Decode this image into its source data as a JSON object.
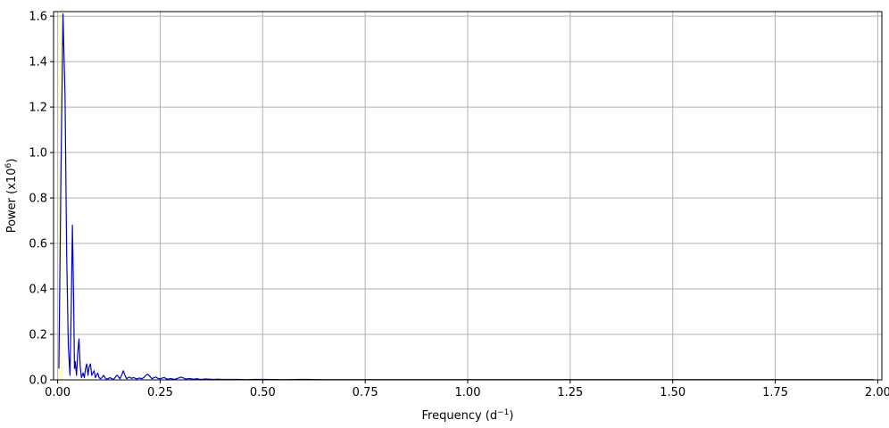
{
  "chart_data": {
    "type": "line",
    "xlabel": "Frequency (d",
    "xlabel_sup": "−1",
    "xlabel_suffix": ")",
    "ylabel": "Power (x10",
    "ylabel_sup": "6",
    "ylabel_suffix": ")",
    "xlim": [
      -0.01,
      2.01
    ],
    "ylim": [
      0,
      1.62
    ],
    "grid": true,
    "xticks": [
      0.0,
      0.25,
      0.5,
      0.75,
      1.0,
      1.25,
      1.5,
      1.75,
      2.0
    ],
    "xtick_labels": [
      "0.00",
      "0.25",
      "0.50",
      "0.75",
      "1.00",
      "1.25",
      "1.50",
      "1.75",
      "2.00"
    ],
    "yticks": [
      0.0,
      0.2,
      0.4,
      0.6,
      0.8,
      1.0,
      1.2,
      1.4,
      1.6
    ],
    "ytick_labels": [
      "0.0",
      "0.2",
      "0.4",
      "0.6",
      "0.8",
      "1.0",
      "1.2",
      "1.4",
      "1.6"
    ],
    "shaded_band": {
      "x0": 0.0,
      "x1": 0.0125,
      "color": "#ffffcc"
    },
    "series": [
      {
        "color": "#0000cc",
        "x": [
          0.003,
          0.008,
          0.013,
          0.018,
          0.022,
          0.026,
          0.03,
          0.033,
          0.036,
          0.039,
          0.041,
          0.043,
          0.046,
          0.049,
          0.052,
          0.055,
          0.058,
          0.06,
          0.062,
          0.065,
          0.068,
          0.071,
          0.074,
          0.077,
          0.08,
          0.083,
          0.086,
          0.089,
          0.092,
          0.095,
          0.098,
          0.101,
          0.104,
          0.108,
          0.112,
          0.116,
          0.12,
          0.124,
          0.128,
          0.132,
          0.136,
          0.14,
          0.144,
          0.148,
          0.152,
          0.156,
          0.16,
          0.164,
          0.168,
          0.172,
          0.176,
          0.18,
          0.184,
          0.188,
          0.192,
          0.196,
          0.2,
          0.205,
          0.21,
          0.215,
          0.22,
          0.225,
          0.23,
          0.235,
          0.24,
          0.245,
          0.25,
          0.255,
          0.26,
          0.265,
          0.27,
          0.275,
          0.28,
          0.285,
          0.29,
          0.295,
          0.3,
          0.305,
          0.31,
          0.315,
          0.32,
          0.325,
          0.33,
          0.335,
          0.34,
          0.345,
          0.35,
          0.355,
          0.36,
          0.37,
          0.38,
          0.39,
          0.4,
          0.42,
          0.44,
          0.46,
          0.48,
          0.5,
          0.55,
          0.6,
          0.65,
          0.7,
          0.75,
          0.8,
          0.85,
          0.9,
          1.0,
          1.1,
          1.2,
          1.3,
          1.4,
          1.5,
          1.6,
          1.7,
          1.8,
          1.9,
          1.99
        ],
        "y": [
          0.05,
          0.9,
          1.61,
          1.25,
          0.55,
          0.15,
          0.02,
          0.3,
          0.68,
          0.35,
          0.05,
          0.08,
          0.02,
          0.12,
          0.18,
          0.06,
          0.01,
          0.02,
          0.03,
          0.01,
          0.05,
          0.07,
          0.02,
          0.06,
          0.07,
          0.02,
          0.03,
          0.04,
          0.01,
          0.02,
          0.03,
          0.01,
          0.005,
          0.01,
          0.02,
          0.008,
          0.003,
          0.006,
          0.01,
          0.005,
          0.002,
          0.01,
          0.02,
          0.015,
          0.005,
          0.02,
          0.04,
          0.02,
          0.005,
          0.01,
          0.012,
          0.006,
          0.01,
          0.008,
          0.004,
          0.006,
          0.008,
          0.005,
          0.01,
          0.02,
          0.025,
          0.015,
          0.005,
          0.01,
          0.012,
          0.006,
          0.004,
          0.008,
          0.01,
          0.005,
          0.003,
          0.006,
          0.004,
          0.002,
          0.005,
          0.008,
          0.012,
          0.01,
          0.005,
          0.004,
          0.006,
          0.005,
          0.003,
          0.004,
          0.005,
          0.003,
          0.002,
          0.003,
          0.004,
          0.003,
          0.002,
          0.003,
          0.002,
          0.002,
          0.002,
          0.001,
          0.002,
          0.002,
          0.001,
          0.002,
          0.001,
          0.001,
          0.001,
          0.001,
          0.001,
          0.001,
          0.001,
          0.001,
          0.001,
          0.001,
          0.001,
          0.001,
          0.001,
          0.001,
          0.001,
          0.001,
          0.001
        ]
      }
    ]
  }
}
